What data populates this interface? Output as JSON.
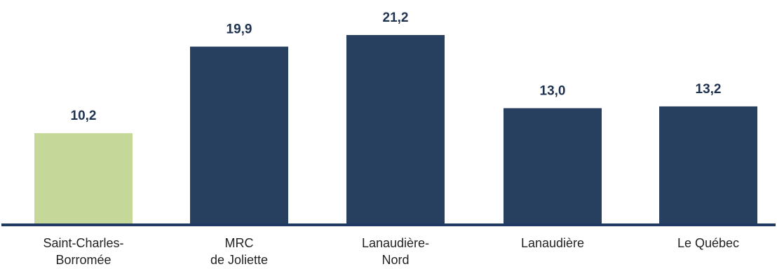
{
  "chart_data": {
    "type": "bar",
    "categories": [
      [
        "Saint-Charles-",
        "Borromée"
      ],
      [
        "MRC",
        "de Joliette"
      ],
      [
        "Lanaudière-",
        "Nord"
      ],
      [
        "Lanaudière"
      ],
      [
        "Le Québec"
      ]
    ],
    "values": [
      10.2,
      19.9,
      21.2,
      13.0,
      13.2
    ],
    "value_labels": [
      "10,2",
      "19,9",
      "21,2",
      "13,0",
      "13,2"
    ],
    "bar_colors": [
      "#c5d89a",
      "#27405f",
      "#27405f",
      "#27405f",
      "#27405f"
    ],
    "axis_color": "#1f3a63",
    "title": "",
    "xlabel": "",
    "ylabel": "",
    "ylim": [
      0,
      21.2
    ],
    "grid": false,
    "legend": "none"
  }
}
